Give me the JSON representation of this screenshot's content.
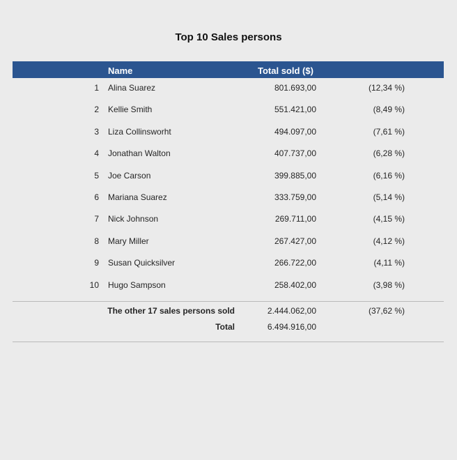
{
  "title": "Top 10 Sales persons",
  "table": {
    "header": [
      "Name",
      "Total sold ($)"
    ],
    "rows": [
      [
        "1",
        "Alina Suarez",
        "801.693,00",
        "(12,34 %)"
      ],
      [
        "2",
        "Kellie Smith",
        "551.421,00",
        "(8,49 %)"
      ],
      [
        "3",
        "Liza Collinsworht",
        "494.097,00",
        "(7,61 %)"
      ],
      [
        "4",
        "Jonathan Walton",
        "407.737,00",
        "(6,28 %)"
      ],
      [
        "5",
        "Joe Carson",
        "399.885,00",
        "(6,16 %)"
      ],
      [
        "6",
        "Mariana Suarez",
        "333.759,00",
        "(5,14 %)"
      ],
      [
        "7",
        "Nick Johnson",
        "269.711,00",
        "(4,15 %)"
      ],
      [
        "8",
        "Mary Miller",
        "267.427,00",
        "(4,12 %)"
      ],
      [
        "9",
        "Susan Quicksilver",
        "266.722,00",
        "(4,11 %)"
      ],
      [
        "10",
        "Hugo Sampson",
        "258.402,00",
        "(3,98 %)"
      ]
    ],
    "others": {
      "label": "The other 17 sales persons sold",
      "total": "2.444.062,00",
      "share": "(37,62 %)"
    },
    "grand_total": {
      "label": "Total",
      "total": "6.494.916,00"
    }
  }
}
